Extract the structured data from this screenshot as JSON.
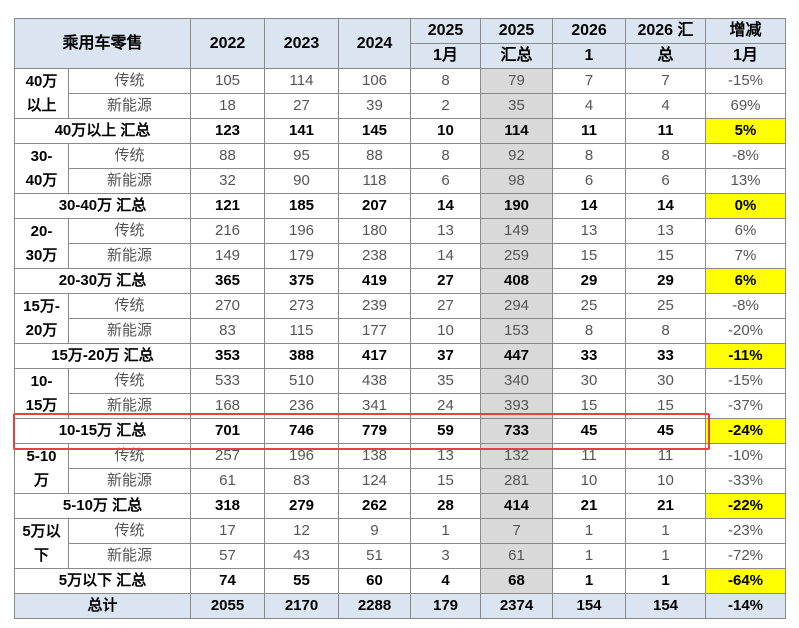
{
  "header": {
    "row1": [
      [
        "乘用车零售"
      ],
      [
        "2022"
      ],
      [
        "2023"
      ],
      [
        "2024"
      ],
      [
        "2025"
      ],
      [
        "2025"
      ],
      [
        "2026"
      ],
      [
        "2026 汇"
      ],
      [
        "增减"
      ]
    ],
    "row2": [
      "1月",
      "汇总",
      "1",
      "总",
      "1月"
    ]
  },
  "groups": [
    {
      "label": [
        "40万",
        "以上"
      ],
      "rows": [
        {
          "type": "传统",
          "values": [
            105,
            114,
            106,
            8,
            79,
            7,
            7
          ],
          "change": "-15%"
        },
        {
          "type": "新能源",
          "values": [
            18,
            27,
            39,
            2,
            35,
            4,
            4
          ],
          "change": "69%"
        }
      ],
      "total": {
        "label": "40万以上 汇总",
        "values": [
          123,
          141,
          145,
          10,
          114,
          11,
          11
        ],
        "change": "5%"
      }
    },
    {
      "label": [
        "30-",
        "40万"
      ],
      "rows": [
        {
          "type": "传统",
          "values": [
            88,
            95,
            88,
            8,
            92,
            8,
            8
          ],
          "change": "-8%"
        },
        {
          "type": "新能源",
          "values": [
            32,
            90,
            118,
            6,
            98,
            6,
            6
          ],
          "change": "13%"
        }
      ],
      "total": {
        "label": "30-40万 汇总",
        "values": [
          121,
          185,
          207,
          14,
          190,
          14,
          14
        ],
        "change": "0%"
      }
    },
    {
      "label": [
        "20-",
        "30万"
      ],
      "rows": [
        {
          "type": "传统",
          "values": [
            216,
            196,
            180,
            13,
            149,
            13,
            13
          ],
          "change": "6%"
        },
        {
          "type": "新能源",
          "values": [
            149,
            179,
            238,
            14,
            259,
            15,
            15
          ],
          "change": "7%"
        }
      ],
      "total": {
        "label": "20-30万 汇总",
        "values": [
          365,
          375,
          419,
          27,
          408,
          29,
          29
        ],
        "change": "6%"
      }
    },
    {
      "label": [
        "15万-",
        "20万"
      ],
      "rows": [
        {
          "type": "传统",
          "values": [
            270,
            273,
            239,
            27,
            294,
            25,
            25
          ],
          "change": "-8%"
        },
        {
          "type": "新能源",
          "values": [
            83,
            115,
            177,
            10,
            153,
            8,
            8
          ],
          "change": "-20%"
        }
      ],
      "total": {
        "label": "15万-20万 汇总",
        "values": [
          353,
          388,
          417,
          37,
          447,
          33,
          33
        ],
        "change": "-11%"
      }
    },
    {
      "label": [
        "10-",
        "15万"
      ],
      "rows": [
        {
          "type": "传统",
          "values": [
            533,
            510,
            438,
            35,
            340,
            30,
            30
          ],
          "change": "-15%"
        },
        {
          "type": "新能源",
          "values": [
            168,
            236,
            341,
            24,
            393,
            15,
            15
          ],
          "change": "-37%"
        }
      ],
      "total": {
        "label": "10-15万 汇总",
        "values": [
          701,
          746,
          779,
          59,
          733,
          45,
          45
        ],
        "change": "-24%"
      }
    },
    {
      "label": [
        "5-10",
        "万"
      ],
      "rows": [
        {
          "type": "传统",
          "values": [
            257,
            196,
            138,
            13,
            132,
            11,
            11
          ],
          "change": "-10%"
        },
        {
          "type": "新能源",
          "values": [
            61,
            83,
            124,
            15,
            281,
            10,
            10
          ],
          "change": "-33%"
        }
      ],
      "total": {
        "label": "5-10万 汇总",
        "values": [
          318,
          279,
          262,
          28,
          414,
          21,
          21
        ],
        "change": "-22%"
      }
    },
    {
      "label": [
        "5万以",
        "下"
      ],
      "rows": [
        {
          "type": "传统",
          "values": [
            17,
            12,
            9,
            1,
            7,
            1,
            1
          ],
          "change": "-23%"
        },
        {
          "type": "新能源",
          "values": [
            57,
            43,
            51,
            3,
            61,
            1,
            1
          ],
          "change": "-72%"
        }
      ],
      "total": {
        "label": "5万以下 汇总",
        "values": [
          74,
          55,
          60,
          4,
          68,
          1,
          1
        ],
        "change": "-64%"
      }
    }
  ],
  "grand_total": {
    "label": "总计",
    "values": [
      2055,
      2170,
      2288,
      179,
      2374,
      154,
      154
    ],
    "change": "-14%"
  }
}
